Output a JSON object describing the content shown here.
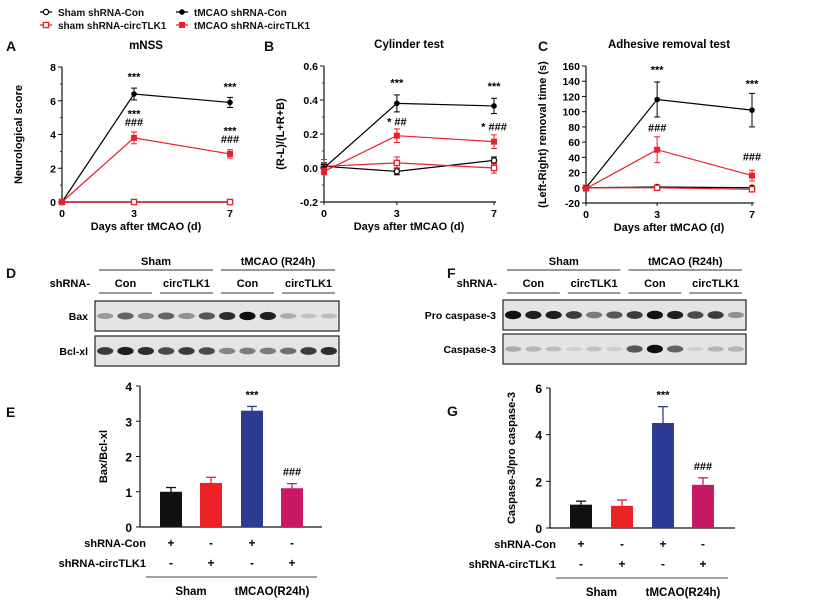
{
  "legend": {
    "entries": [
      {
        "label": "Sham shRNA-Con",
        "color": "#000000",
        "marker": "open-circle"
      },
      {
        "label": "sham shRNA-circTLK1",
        "color": "#e8202a",
        "marker": "open-square"
      },
      {
        "label": "tMCAO shRNA-Con",
        "color": "#000000",
        "marker": "filled-circle"
      },
      {
        "label": "tMCAO shRNA-circTLK1",
        "color": "#e8202a",
        "marker": "filled-square"
      }
    ]
  },
  "panel_letters": [
    "A",
    "B",
    "C",
    "D",
    "E",
    "F",
    "G"
  ],
  "chart_data": [
    {
      "panel": "A",
      "type": "line",
      "title": "mNSS",
      "xlabel": "Days after tMCAO (d)",
      "ylabel": "Neurological score",
      "x": [
        0,
        3,
        7
      ],
      "x_ticks": [
        "0",
        "3",
        "7"
      ],
      "ylim": [
        0,
        8
      ],
      "y_ticks": [
        "0",
        "2",
        "4",
        "6",
        "8"
      ],
      "y_tick_values": [
        0,
        2,
        4,
        6,
        8
      ],
      "series": [
        {
          "name": "Sham shRNA-Con",
          "color": "#000000",
          "marker": "open-circle",
          "values": [
            0,
            0,
            0
          ],
          "err": [
            0,
            0,
            0
          ]
        },
        {
          "name": "sham shRNA-circTLK1",
          "color": "#e8202a",
          "marker": "open-square",
          "values": [
            0,
            0,
            0
          ],
          "err": [
            0,
            0,
            0
          ]
        },
        {
          "name": "tMCAO shRNA-Con",
          "color": "#000000",
          "marker": "filled-circle",
          "values": [
            0,
            6.4,
            5.9
          ],
          "err": [
            0,
            0.35,
            0.3
          ]
        },
        {
          "name": "tMCAO shRNA-circTLK1",
          "color": "#e8202a",
          "marker": "filled-square",
          "values": [
            0,
            3.8,
            2.85
          ],
          "err": [
            0,
            0.35,
            0.25
          ]
        }
      ],
      "annotations": [
        {
          "x": 3,
          "y": 7.2,
          "text": "***"
        },
        {
          "x": 7,
          "y": 6.6,
          "text": "***"
        },
        {
          "x": 3,
          "y": 5.0,
          "text": "***"
        },
        {
          "x": 3,
          "y": 4.5,
          "text": "###"
        },
        {
          "x": 7,
          "y": 4.0,
          "text": "***"
        },
        {
          "x": 7,
          "y": 3.5,
          "text": "###"
        }
      ]
    },
    {
      "panel": "B",
      "type": "line",
      "title": "Cylinder test",
      "xlabel": "Days after tMCAO (d)",
      "ylabel": "(R-L)/(L+R+B)",
      "x": [
        0,
        3,
        7
      ],
      "x_ticks": [
        "0",
        "3",
        "7"
      ],
      "ylim": [
        -0.2,
        0.6
      ],
      "y_ticks": [
        "-0.2",
        "0.0",
        "0.2",
        "0.4",
        "0.6"
      ],
      "y_tick_values": [
        -0.2,
        0.0,
        0.2,
        0.4,
        0.6
      ],
      "series": [
        {
          "name": "Sham shRNA-Con",
          "color": "#000000",
          "marker": "open-circle",
          "values": [
            0.01,
            -0.02,
            0.045
          ],
          "err": [
            0.02,
            0.02,
            0.02
          ]
        },
        {
          "name": "sham shRNA-circTLK1",
          "color": "#e8202a",
          "marker": "open-square",
          "values": [
            0.01,
            0.03,
            0.0
          ],
          "err": [
            0.04,
            0.035,
            0.03
          ]
        },
        {
          "name": "tMCAO shRNA-Con",
          "color": "#000000",
          "marker": "filled-circle",
          "values": [
            0.0,
            0.38,
            0.365
          ],
          "err": [
            0.02,
            0.05,
            0.045
          ]
        },
        {
          "name": "tMCAO shRNA-circTLK1",
          "color": "#e8202a",
          "marker": "filled-square",
          "values": [
            -0.02,
            0.19,
            0.155
          ],
          "err": [
            0.02,
            0.04,
            0.04
          ]
        }
      ],
      "annotations": [
        {
          "x": 3,
          "y": 0.48,
          "text": "***"
        },
        {
          "x": 7,
          "y": 0.46,
          "text": "***"
        },
        {
          "x": 3,
          "y": 0.25,
          "text": "* ##"
        },
        {
          "x": 7,
          "y": 0.22,
          "text": "* ###"
        }
      ]
    },
    {
      "panel": "C",
      "type": "line",
      "title": "Adhesive removal test",
      "xlabel": "Days after tMCAO (d)",
      "ylabel": "(Left-Right) removal time (s)",
      "x": [
        0,
        3,
        7
      ],
      "x_ticks": [
        "0",
        "3",
        "7"
      ],
      "ylim": [
        -20,
        160
      ],
      "y_ticks": [
        "-20",
        "0",
        "20",
        "40",
        "60",
        "80",
        "100",
        "120",
        "140",
        "160"
      ],
      "y_tick_values": [
        -20,
        0,
        20,
        40,
        60,
        80,
        100,
        120,
        140,
        160
      ],
      "series": [
        {
          "name": "Sham shRNA-Con",
          "color": "#000000",
          "marker": "open-circle",
          "values": [
            0,
            1,
            0
          ],
          "err": [
            0,
            1,
            1
          ]
        },
        {
          "name": "sham shRNA-circTLK1",
          "color": "#e8202a",
          "marker": "open-square",
          "values": [
            0,
            0,
            -2
          ],
          "err": [
            0,
            1,
            1
          ]
        },
        {
          "name": "tMCAO shRNA-Con",
          "color": "#000000",
          "marker": "filled-circle",
          "values": [
            0,
            116,
            102
          ],
          "err": [
            2,
            23,
            22
          ]
        },
        {
          "name": "tMCAO shRNA-circTLK1",
          "color": "#e8202a",
          "marker": "filled-square",
          "values": [
            -1,
            50,
            16
          ],
          "err": [
            2,
            17,
            7
          ]
        }
      ],
      "annotations": [
        {
          "x": 3,
          "y": 150,
          "text": "***"
        },
        {
          "x": 7,
          "y": 132,
          "text": "***"
        },
        {
          "x": 3,
          "y": 74,
          "text": "###"
        },
        {
          "x": 7,
          "y": 36,
          "text": "###"
        }
      ]
    },
    {
      "panel": "E",
      "type": "bar",
      "title": "",
      "xlabel": "",
      "ylabel": "Bax/Bcl-xl",
      "ylim": [
        0,
        4
      ],
      "y_ticks": [
        "0",
        "1",
        "2",
        "3",
        "4"
      ],
      "y_tick_values": [
        0,
        1,
        2,
        3,
        4
      ],
      "categories": [
        "Sham shRNA-Con",
        "Sham shRNA-circTLK1",
        "tMCAO shRNA-Con",
        "tMCAO shRNA-circTLK1"
      ],
      "values": [
        1.0,
        1.25,
        3.3,
        1.1
      ],
      "err": [
        0.12,
        0.16,
        0.12,
        0.13
      ],
      "colors": [
        "#111111",
        "#ec2227",
        "#2c3c94",
        "#c81a64"
      ],
      "bar_annotations": [
        "",
        "",
        "***",
        "###"
      ],
      "condition_rows": [
        {
          "label": "shRNA-Con",
          "marks": [
            "+",
            "-",
            "+",
            "-"
          ]
        },
        {
          "label": "shRNA-circTLK1",
          "marks": [
            "-",
            "+",
            "-",
            "+"
          ]
        }
      ],
      "groups": [
        "Sham",
        "tMCAO(R24h)"
      ]
    },
    {
      "panel": "G",
      "type": "bar",
      "title": "",
      "xlabel": "",
      "ylabel": "Caspase-3/pro caspase-3",
      "ylim": [
        0,
        6
      ],
      "y_ticks": [
        "0",
        "2",
        "4",
        "6"
      ],
      "y_tick_values": [
        0,
        2,
        4,
        6
      ],
      "categories": [
        "Sham shRNA-Con",
        "Sham shRNA-circTLK1",
        "tMCAO shRNA-Con",
        "tMCAO shRNA-circTLK1"
      ],
      "values": [
        1.0,
        0.95,
        4.5,
        1.85
      ],
      "err": [
        0.15,
        0.25,
        0.7,
        0.3
      ],
      "colors": [
        "#111111",
        "#ec2227",
        "#2c3c94",
        "#c81a64"
      ],
      "bar_annotations": [
        "",
        "",
        "***",
        "###"
      ],
      "condition_rows": [
        {
          "label": "shRNA-Con",
          "marks": [
            "+",
            "-",
            "+",
            "-"
          ]
        },
        {
          "label": "shRNA-circTLK1",
          "marks": [
            "-",
            "+",
            "-",
            "+"
          ]
        }
      ],
      "groups": [
        "Sham",
        "tMCAO(R24h)"
      ]
    }
  ],
  "blots": [
    {
      "panel": "D",
      "groups": [
        "Sham",
        "tMCAO (R24h)"
      ],
      "row_prefix": "shRNA-",
      "subgroups": [
        "Con",
        "circTLK1",
        "Con",
        "circTLK1"
      ],
      "lanes": 12,
      "rows": [
        {
          "label": "Bax",
          "intensity": [
            0.45,
            0.7,
            0.55,
            0.7,
            0.5,
            0.75,
            0.9,
            1.0,
            0.95,
            0.35,
            0.2,
            0.25
          ]
        },
        {
          "label": "Bcl-xl",
          "intensity": [
            0.85,
            0.95,
            0.9,
            0.8,
            0.85,
            0.8,
            0.55,
            0.6,
            0.6,
            0.65,
            0.85,
            0.9
          ]
        }
      ]
    },
    {
      "panel": "F",
      "groups": [
        "Sham",
        "tMCAO (R24h)"
      ],
      "row_prefix": "shRNA-",
      "subgroups": [
        "Con",
        "circTLK1",
        "Con",
        "circTLK1"
      ],
      "lanes": 12,
      "rows": [
        {
          "label": "Pro caspase-3",
          "intensity": [
            1.0,
            0.95,
            0.95,
            0.85,
            0.6,
            0.75,
            0.85,
            1.0,
            0.95,
            0.8,
            0.85,
            0.5
          ]
        },
        {
          "label": "Caspase-3",
          "intensity": [
            0.35,
            0.3,
            0.25,
            0.1,
            0.2,
            0.12,
            0.75,
            1.0,
            0.7,
            0.1,
            0.3,
            0.3
          ]
        }
      ]
    }
  ]
}
